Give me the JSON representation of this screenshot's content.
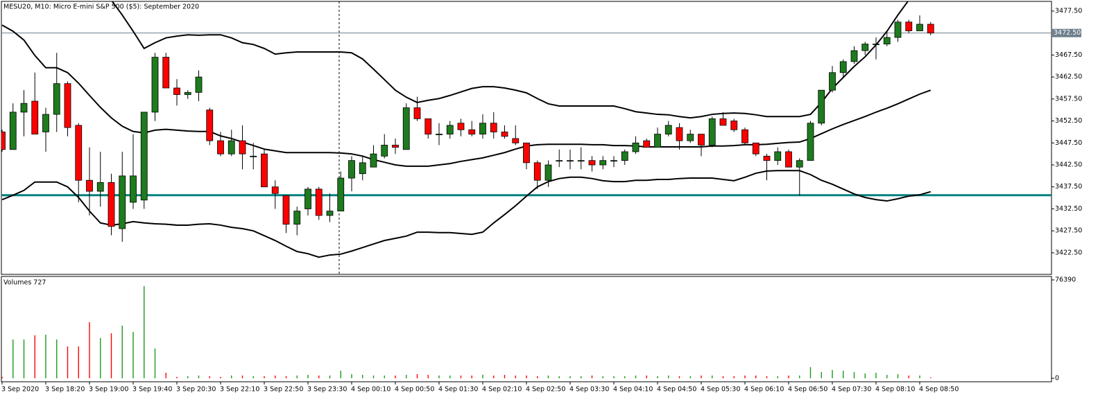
{
  "chart_data": [
    {
      "type": "candlestick",
      "title": "MESU20, M10:  Micro E-mini S&P 500 ($5): September 2020",
      "categories": [
        "3 Sep 2020",
        null,
        null,
        null,
        "3 Sep 18:20",
        null,
        null,
        null,
        "3 Sep 19:00",
        null,
        null,
        null,
        "3 Sep 19:40",
        null,
        null,
        null,
        "3 Sep 20:30",
        null,
        null,
        null,
        "3 Sep 22:10",
        null,
        null,
        null,
        "3 Sep 22:50",
        null,
        null,
        null,
        "3 Sep 23:30",
        null,
        null,
        null,
        "4 Sep 00:10",
        null,
        null,
        null,
        "4 Sep 00:50",
        null,
        null,
        null,
        "4 Sep 01:30",
        null,
        null,
        null,
        "4 Sep 02:10",
        null,
        null,
        null,
        "4 Sep 02:50",
        null,
        null,
        null,
        "4 Sep 03:30",
        null,
        null,
        null,
        "4 Sep 04:10",
        null,
        null,
        null,
        "4 Sep 04:50",
        null,
        null,
        null,
        "4 Sep 05:30",
        null,
        null,
        null,
        "4 Sep 06:10",
        null,
        null,
        null,
        "4 Sep 06:50",
        null,
        null,
        null,
        "4 Sep 07:30",
        null,
        null,
        null,
        "4 Sep 08:10",
        null,
        null,
        null,
        "4 Sep 08:50",
        null
      ],
      "open": [
        3450,
        3446,
        3454.5,
        3457,
        3450,
        3454,
        3461,
        3451.5,
        3439,
        3436.5,
        3438.5,
        3428,
        3434,
        3434.5,
        3454.5,
        3467,
        3460,
        3458.5,
        3459,
        3455,
        3448,
        3445,
        3448,
        3444.5,
        3445,
        3437.5,
        3435.5,
        3429,
        3432.5,
        3437,
        3431,
        3432,
        3439.5,
        3440.5,
        3442,
        3444.5,
        3447,
        3446,
        3455.5,
        3453,
        3449.5,
        3449.5,
        3452,
        3450.5,
        3449.5,
        3452,
        3450,
        3448.5,
        3447.5,
        3443,
        3439,
        3443.5,
        3443.5,
        3443.5,
        3443.5,
        3442.5,
        3443.5,
        3443.5,
        3445.5,
        3448,
        3446.5,
        3449.5,
        3451,
        3448,
        3449.5,
        3447,
        3453,
        3452.5,
        3450.5,
        3447.5,
        3444.5,
        3443.5,
        3445.5,
        3442,
        3443.5,
        3452,
        3459.5,
        3463.5,
        3466,
        3468.5,
        3470,
        3470,
        3471.5,
        3475,
        3473,
        3474.5
      ],
      "high": [
        3450.5,
        3456.5,
        3459.5,
        3463.5,
        3455.5,
        3468,
        3461.5,
        3452,
        3446.5,
        3445.5,
        3440.5,
        3445.5,
        3449.5,
        3454.5,
        3468,
        3468,
        3462,
        3459.5,
        3464,
        3455.5,
        3450,
        3450.5,
        3451.5,
        3447.5,
        3446,
        3439,
        3435.5,
        3433,
        3437.5,
        3437.5,
        3436,
        3441,
        3444.5,
        3444.5,
        3447,
        3449.5,
        3448.5,
        3456.5,
        3458,
        3453,
        3452,
        3452.5,
        3453,
        3452.5,
        3454,
        3454.5,
        3451.5,
        3451.5,
        3447.5,
        3443.5,
        3443.5,
        3446,
        3446,
        3446.5,
        3444.5,
        3444.5,
        3444.5,
        3446,
        3449,
        3448.5,
        3451,
        3452.5,
        3452,
        3450.5,
        3449.5,
        3453.5,
        3454.5,
        3453,
        3451,
        3447.5,
        3445,
        3446.5,
        3446,
        3444,
        3452.5,
        3459.5,
        3465,
        3466.5,
        3469.5,
        3470.5,
        3471.5,
        3473,
        3475.5,
        3475.5,
        3476.5,
        3475
      ],
      "low": [
        3445.5,
        3446,
        3449,
        3449.5,
        3445.5,
        3450,
        3449,
        3434,
        3431,
        3433,
        3426.5,
        3425,
        3432.5,
        3432.5,
        3452.5,
        3460,
        3456,
        3457.5,
        3457,
        3447,
        3444.5,
        3444.5,
        3441.5,
        3441.5,
        3437.5,
        3432.5,
        3427,
        3426.5,
        3431,
        3430,
        3429.5,
        3432,
        3436.5,
        3439,
        3442,
        3444,
        3445,
        3446,
        3452.5,
        3448.5,
        3447,
        3448.5,
        3449,
        3449,
        3448.5,
        3448.5,
        3448.5,
        3447,
        3441.5,
        3437,
        3437.5,
        3442,
        3441.5,
        3441.5,
        3441,
        3441.5,
        3442,
        3442.5,
        3445,
        3446.5,
        3446.5,
        3449,
        3446,
        3447.5,
        3444.5,
        3446.5,
        3451.5,
        3450,
        3447,
        3444.5,
        3439,
        3442.5,
        3442,
        3435.5,
        3443.5,
        3451.5,
        3459,
        3462.5,
        3465.5,
        3467.5,
        3466.5,
        3469.5,
        3470.5,
        3472.5,
        3473,
        3472
      ],
      "close": [
        3446,
        3454.5,
        3456.5,
        3449.5,
        3454,
        3461,
        3451,
        3439,
        3436.5,
        3438.5,
        3428.5,
        3440,
        3440,
        3454.5,
        3467,
        3460,
        3458.5,
        3459,
        3462.5,
        3448,
        3445,
        3448,
        3445,
        3444.5,
        3437.5,
        3436,
        3429,
        3432,
        3437,
        3431,
        3432,
        3439.5,
        3443.5,
        3443,
        3445,
        3447,
        3446.5,
        3455.5,
        3453,
        3449.5,
        3449.5,
        3451.5,
        3450.5,
        3449.5,
        3452,
        3450,
        3449,
        3447.5,
        3443,
        3439,
        3442.5,
        3443.5,
        3443.5,
        3443.5,
        3442.5,
        3443.5,
        3443.5,
        3445.5,
        3447.5,
        3446.5,
        3449.5,
        3451.5,
        3448,
        3449.5,
        3447,
        3453,
        3451.5,
        3450.5,
        3447.5,
        3445,
        3443.5,
        3445.5,
        3442,
        3443.5,
        3452,
        3459.5,
        3463.5,
        3466,
        3468.5,
        3470,
        3470,
        3471.5,
        3475,
        3473,
        3474.5,
        3472.5
      ],
      "up_color": "#1e7b1e",
      "down_color": "#ff0000",
      "series": [
        {
          "color": "#000000",
          "values": [
            null,
            null,
            null,
            null,
            null,
            null,
            null,
            null,
            null,
            null,
            3480,
            3476.6,
            3472.9,
            3469,
            3470.3,
            3471.4,
            3471.8,
            3472.1,
            3472,
            3472.1,
            3472.1,
            3471.4,
            3470.3,
            3469.9,
            3469,
            3467.7,
            3468,
            3468.2,
            3468.2,
            3468.2,
            3468.2,
            3468.2,
            3468,
            3466.6,
            3464.3,
            3461.9,
            3459.5,
            3457.9,
            3456.7,
            3457.2,
            3457.6,
            3458.3,
            3459.1,
            3459.9,
            3460.3,
            3460.3,
            3460,
            3459.5,
            3458.9,
            3457.6,
            3456.4,
            3455.9,
            3455.9,
            3455.9,
            3455.9,
            3455.9,
            3455.9,
            3455.3,
            3454.6,
            3454.3,
            3454,
            3453.9,
            3453.5,
            3453.2,
            3453.5,
            3454,
            3454.2,
            3454.3,
            3454.2,
            3453.9,
            3453.5,
            3453.5,
            3453.5,
            3453.5,
            3454,
            3456.7,
            3459.9,
            3462.4,
            3464.9,
            3467.1,
            3469.8,
            3472.9,
            3476.6,
            3480,
            null,
            null
          ]
        },
        {
          "color": "#000000",
          "values": [
            3474.3,
            3472.9,
            3470.9,
            3467.4,
            3464.6,
            3464.6,
            3463.5,
            3461.1,
            3458.3,
            3455.6,
            3453.2,
            3451.3,
            3450.1,
            3449.8,
            3450.4,
            3450.6,
            3450.4,
            3450.2,
            3450.1,
            3450.1,
            3449.1,
            3448.5,
            3447.7,
            3446.9,
            3446.1,
            3445.7,
            3445.3,
            3445.3,
            3445.3,
            3445.3,
            3445.3,
            3445.2,
            3445,
            3444.5,
            3443.7,
            3443.1,
            3442.5,
            3442.2,
            3442.2,
            3442.2,
            3442.5,
            3442.8,
            3443.3,
            3443.7,
            3444.1,
            3444.7,
            3445.3,
            3446.1,
            3446.8,
            3447.1,
            3447.2,
            3447.2,
            3447.2,
            3447.2,
            3447.1,
            3447.1,
            3446.9,
            3446.9,
            3446.8,
            3446.6,
            3446.6,
            3446.6,
            3446.6,
            3446.6,
            3446.6,
            3446.8,
            3446.8,
            3446.9,
            3447.1,
            3447.1,
            3447.2,
            3447.4,
            3447.6,
            3447.7,
            3448.5,
            3449.6,
            3450.7,
            3451.7,
            3452.6,
            3453.5,
            3454.5,
            3455.4,
            3456.4,
            3457.5,
            3458.6,
            3459.5
          ]
        },
        {
          "color": "#000000",
          "values": [
            3434.6,
            3435.6,
            3436.7,
            3438.6,
            3438.6,
            3438.6,
            3437.5,
            3435.1,
            3432,
            3429.3,
            3428.8,
            3429.1,
            3429.6,
            3429.3,
            3429.1,
            3429,
            3428.8,
            3428.8,
            3429,
            3429.1,
            3428.8,
            3428.3,
            3428,
            3427.5,
            3426.4,
            3425.3,
            3424,
            3422.8,
            3422.3,
            3421.5,
            3422,
            3422.2,
            3422.9,
            3423.7,
            3424.5,
            3425.3,
            3425.8,
            3426.3,
            3427.2,
            3427.2,
            3427.1,
            3427.1,
            3426.9,
            3426.7,
            3427.2,
            3429.3,
            3431.2,
            3433.2,
            3435.4,
            3437.5,
            3438.7,
            3439.4,
            3439.7,
            3439.7,
            3439.4,
            3438.9,
            3438.7,
            3438.7,
            3439,
            3439,
            3439.2,
            3439.2,
            3439.4,
            3439.5,
            3439.5,
            3439.5,
            3439.2,
            3438.9,
            3439.7,
            3440.6,
            3441.1,
            3441.2,
            3441.2,
            3441.2,
            3440.3,
            3439,
            3438.1,
            3437,
            3435.9,
            3435.1,
            3434.6,
            3434.3,
            3434.8,
            3435.4,
            3435.7,
            3436.4
          ]
        }
      ],
      "levels": [
        {
          "value": 3435.6,
          "color": "#00807f"
        }
      ],
      "bid": {
        "value": 3472.5,
        "label": "3472.50",
        "color": "#6e7f8c"
      },
      "ylim": [
        3417.6,
        3479.7
      ],
      "yticks": [
        {
          "value": 3477.5,
          "label": "3477.50"
        },
        {
          "value": 3467.5,
          "label": "3467.50"
        },
        {
          "value": 3462.5,
          "label": "3462.50"
        },
        {
          "value": 3457.5,
          "label": "3457.50"
        },
        {
          "value": 3452.5,
          "label": "3452.50"
        },
        {
          "value": 3447.5,
          "label": "3447.50"
        },
        {
          "value": 3442.5,
          "label": "3442.50"
        },
        {
          "value": 3437.5,
          "label": "3437.50"
        },
        {
          "value": 3432.5,
          "label": "3432.50"
        },
        {
          "value": 3427.5,
          "label": "3427.50"
        },
        {
          "value": 3422.5,
          "label": "3422.50"
        }
      ],
      "grid": false
    },
    {
      "type": "bar",
      "title": "Volumes 727",
      "values": [
        1076,
        30128,
        30128,
        33356,
        33894,
        30128,
        24748,
        24748,
        43578,
        31204,
        34970,
        40888,
        36046,
        71554,
        23134,
        4304,
        1076,
        1614,
        2152,
        1614,
        1076,
        2152,
        2152,
        1614,
        1614,
        2152,
        1614,
        2152,
        2690,
        2152,
        2152,
        5918,
        3228,
        2690,
        2152,
        2152,
        2152,
        2690,
        3228,
        2690,
        2152,
        2152,
        2152,
        2152,
        2690,
        2152,
        2690,
        2152,
        2152,
        1614,
        2152,
        1614,
        1614,
        1614,
        2152,
        1614,
        1614,
        1614,
        2152,
        2152,
        1614,
        2152,
        1614,
        1614,
        2152,
        2152,
        1614,
        1614,
        2152,
        2152,
        1614,
        1614,
        2152,
        2152,
        8608,
        4842,
        6456,
        5918,
        4842,
        3766,
        4304,
        2690,
        3228,
        2152,
        2152,
        727
      ],
      "ylim": [
        0,
        76390
      ],
      "yticks": [
        0,
        76390
      ],
      "grid": false
    }
  ]
}
